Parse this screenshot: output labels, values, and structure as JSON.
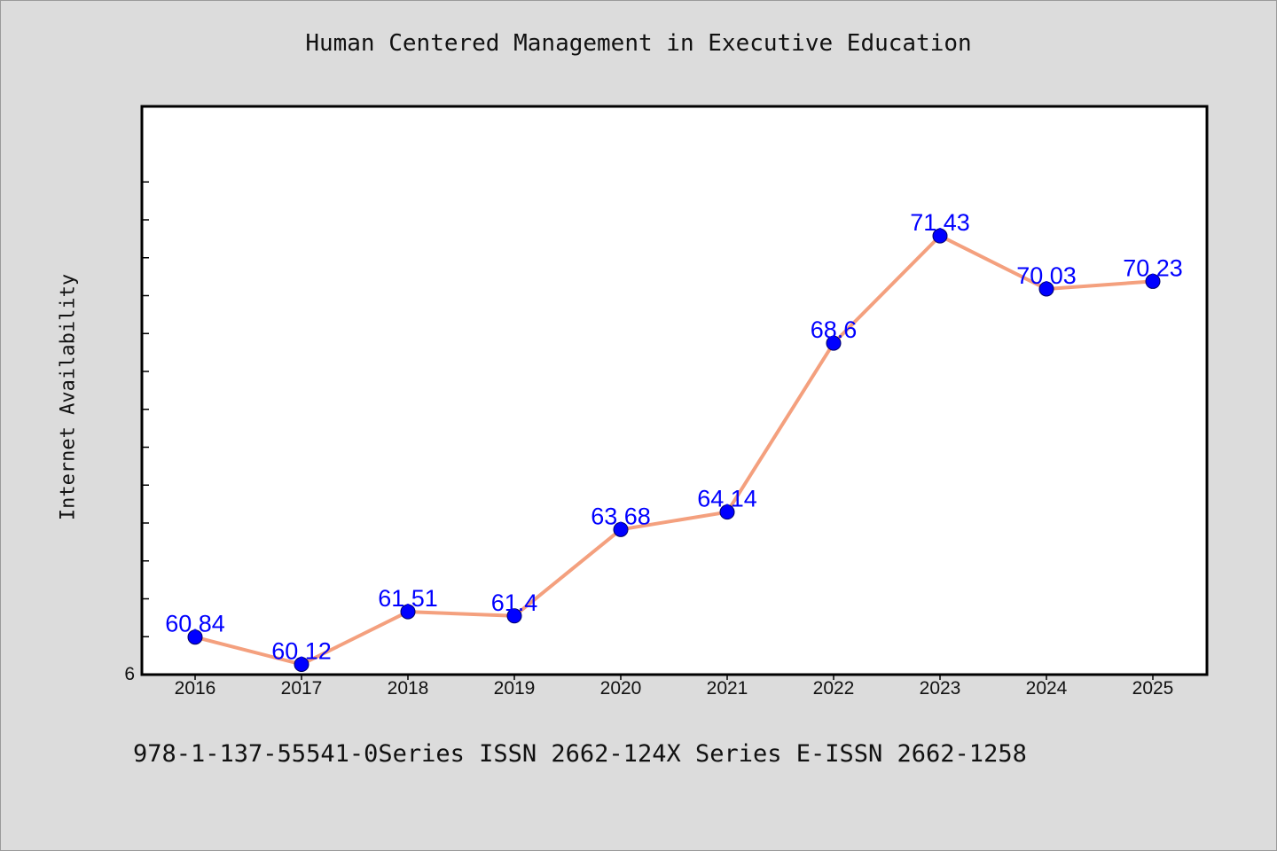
{
  "chart_data": {
    "type": "line",
    "title": "Human Centered Management in Executive Education",
    "xlabel": "",
    "ylabel": "Internet Availability",
    "x": [
      "2016",
      "2017",
      "2018",
      "2019",
      "2020",
      "2021",
      "2022",
      "2023",
      "2024",
      "2025"
    ],
    "series": [
      {
        "values": [
          60.84,
          60.12,
          61.51,
          61.4,
          63.68,
          64.14,
          68.6,
          71.43,
          70.03,
          70.23
        ]
      }
    ],
    "ylim": [
      59.85,
      74.85
    ],
    "y_tick_labels": [
      "6"
    ],
    "data_labels": [
      "60.84",
      "60.12",
      "61.51",
      "61.4",
      "63.68",
      "64.14",
      "68.6",
      "71.43",
      "70.03",
      "70.23"
    ],
    "grid": false,
    "legend": "none",
    "colors": {
      "line": "#f4a07e",
      "marker": "#0000ff",
      "data_label": "#0000ff",
      "plot_bg": "#ffffff",
      "page_bg": "#dcdcdc"
    }
  },
  "footer": {
    "text": "978-1-137-55541-0Series ISSN 2662-124X Series E-ISSN 2662-1258"
  }
}
